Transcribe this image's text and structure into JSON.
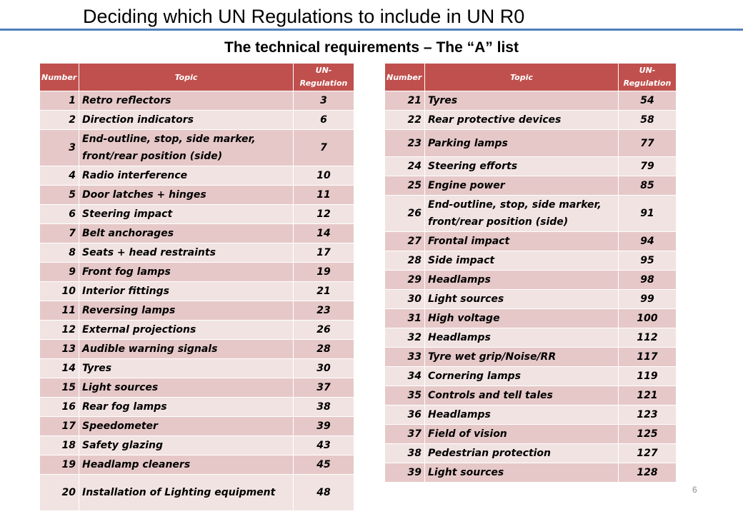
{
  "title": "Deciding which UN Regulations to include in UN R0",
  "subtitle": "The technical requirements – The “A” list",
  "headers": {
    "number": "Number",
    "topic": "Topic",
    "regulation": "UN-Regulation"
  },
  "left_rows": [
    {
      "number": "1",
      "topic": "Retro reflectors",
      "reg": "3"
    },
    {
      "number": "2",
      "topic": "Direction indicators",
      "reg": "6"
    },
    {
      "number": "3",
      "topic": "End-outline, stop, side marker, front/rear position (side)",
      "reg": "7"
    },
    {
      "number": "4",
      "topic": "Radio interference",
      "reg": "10"
    },
    {
      "number": "5",
      "topic": "Door latches + hinges",
      "reg": "11"
    },
    {
      "number": "6",
      "topic": "Steering impact",
      "reg": "12"
    },
    {
      "number": "7",
      "topic": "Belt anchorages",
      "reg": "14"
    },
    {
      "number": "8",
      "topic": "Seats +  head restraints",
      "reg": "17"
    },
    {
      "number": "9",
      "topic": "Front fog lamps",
      "reg": "19"
    },
    {
      "number": "10",
      "topic": "Interior fittings",
      "reg": "21"
    },
    {
      "number": "11",
      "topic": "Reversing lamps",
      "reg": "23"
    },
    {
      "number": "12",
      "topic": "External projections",
      "reg": "26"
    },
    {
      "number": "13",
      "topic": "Audible warning signals",
      "reg": "28"
    },
    {
      "number": "14",
      "topic": "Tyres",
      "reg": "30"
    },
    {
      "number": "15",
      "topic": "Light sources",
      "reg": "37"
    },
    {
      "number": "16",
      "topic": "Rear fog lamps",
      "reg": "38"
    },
    {
      "number": "17",
      "topic": "Speedometer",
      "reg": "39"
    },
    {
      "number": "18",
      "topic": "Safety glazing",
      "reg": "43"
    },
    {
      "number": "19",
      "topic": "Headlamp cleaners",
      "reg": "45"
    },
    {
      "number": "20",
      "topic": "Installation of Lighting equipment",
      "reg": "48"
    }
  ],
  "right_rows": [
    {
      "number": "21",
      "topic": "Tyres",
      "reg": "54"
    },
    {
      "number": "22",
      "topic": "Rear protective devices",
      "reg": "58"
    },
    {
      "number": "23",
      "topic": "Parking lamps",
      "reg": "77"
    },
    {
      "number": "24",
      "topic": "Steering efforts",
      "reg": "79"
    },
    {
      "number": "25",
      "topic": "Engine power",
      "reg": "85"
    },
    {
      "number": "26",
      "topic": "End-outline, stop, side marker, front/rear position (side)",
      "reg": "91"
    },
    {
      "number": "27",
      "topic": "Frontal impact",
      "reg": "94"
    },
    {
      "number": "28",
      "topic": "Side impact",
      "reg": "95"
    },
    {
      "number": "29",
      "topic": "Headlamps",
      "reg": "98"
    },
    {
      "number": "30",
      "topic": "Light sources",
      "reg": "99"
    },
    {
      "number": "31",
      "topic": "High voltage",
      "reg": "100"
    },
    {
      "number": "32",
      "topic": "Headlamps",
      "reg": "112"
    },
    {
      "number": "33",
      "topic": "Tyre wet grip/Noise/RR",
      "reg": "117"
    },
    {
      "number": "34",
      "topic": "Cornering lamps",
      "reg": "119"
    },
    {
      "number": "35",
      "topic": "Controls and tell tales",
      "reg": "121"
    },
    {
      "number": "36",
      "topic": "Headlamps",
      "reg": "123"
    },
    {
      "number": "37",
      "topic": "Field of vision",
      "reg": "125"
    },
    {
      "number": "38",
      "topic": "Pedestrian protection",
      "reg": "127"
    },
    {
      "number": "39",
      "topic": "Light sources",
      "reg": "128"
    }
  ],
  "page_number": "6"
}
